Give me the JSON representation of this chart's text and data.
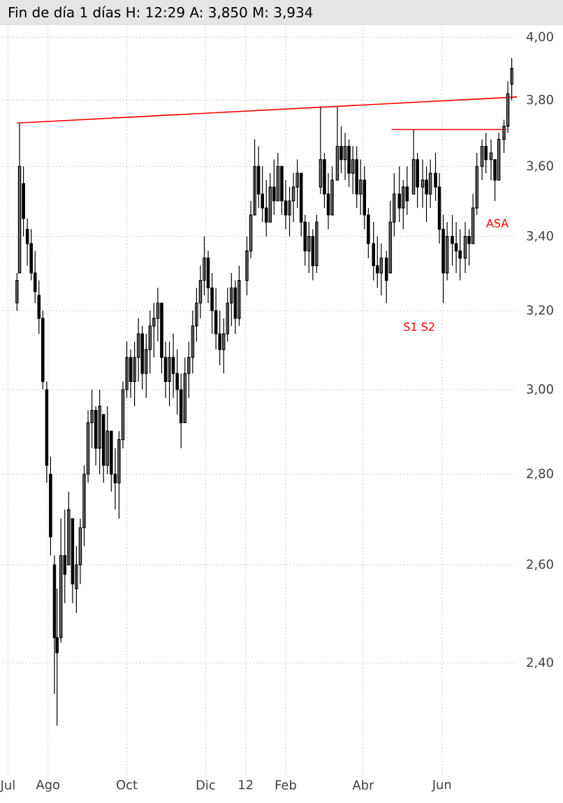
{
  "chart_data": {
    "type": "candlestick",
    "title": "Fin de día 1 días H: 12:29 A: 3,850 M: 3,934",
    "log": true,
    "grid": true,
    "xlim": [
      "2011-06-27",
      "2012-07-29"
    ],
    "ylim": [
      2.19,
      4.04
    ],
    "xticks": [
      {
        "value": "2011-07-01",
        "label": "Jul"
      },
      {
        "value": "2011-08-01",
        "label": "Ago"
      },
      {
        "value": "2011-10-01",
        "label": "Oct"
      },
      {
        "value": "2011-12-01",
        "label": "Dic"
      },
      {
        "value": "2012-01-01",
        "label": "12"
      },
      {
        "value": "2012-02-01",
        "label": "Feb"
      },
      {
        "value": "2012-04-01",
        "label": "Abr"
      },
      {
        "value": "2012-06-01",
        "label": "Jun"
      }
    ],
    "yticks": [
      {
        "value": 2.4,
        "label": "2,40"
      },
      {
        "value": 2.6,
        "label": "2,60"
      },
      {
        "value": 2.8,
        "label": "2,80"
      },
      {
        "value": 3.0,
        "label": "3,00"
      },
      {
        "value": 3.2,
        "label": "3,20"
      },
      {
        "value": 3.4,
        "label": "3,40"
      },
      {
        "value": 3.6,
        "label": "3,60"
      },
      {
        "value": 3.8,
        "label": "3,80"
      },
      {
        "value": 4.0,
        "label": "4,00"
      }
    ],
    "series": [
      {
        "type": "line",
        "color": "#ff0000",
        "x": [
          "2011-07-08",
          "2012-07-29"
        ],
        "values": [
          3.73,
          3.81
        ]
      },
      {
        "type": "line",
        "color": "#ff0000",
        "x": [
          "2012-04-23",
          "2012-07-21"
        ],
        "values": [
          3.71,
          3.71
        ]
      },
      {
        "color": "#000000",
        "x": [
          "2011-07-08",
          "2011-07-10",
          "2011-07-13",
          "2011-07-16",
          "2011-07-19",
          "2011-07-22",
          "2011-07-25",
          "2011-07-28",
          "2011-07-31",
          "2011-08-03",
          "2011-08-06",
          "2011-08-08",
          "2011-08-11",
          "2011-08-14",
          "2011-08-17",
          "2011-08-20",
          "2011-08-23",
          "2011-08-26",
          "2011-08-29",
          "2011-09-01",
          "2011-09-04",
          "2011-09-07",
          "2011-09-10",
          "2011-09-13",
          "2011-09-16",
          "2011-09-19",
          "2011-09-22",
          "2011-09-25",
          "2011-09-28",
          "2011-10-01",
          "2011-10-04",
          "2011-10-07",
          "2011-10-10",
          "2011-10-13",
          "2011-10-16",
          "2011-10-19",
          "2011-10-22",
          "2011-10-25",
          "2011-10-28",
          "2011-10-31",
          "2011-11-03",
          "2011-11-06",
          "2011-11-09",
          "2011-11-12",
          "2011-11-15",
          "2011-11-18",
          "2011-11-21",
          "2011-11-24",
          "2011-11-27",
          "2011-11-30",
          "2011-12-03",
          "2011-12-06",
          "2011-12-09",
          "2011-12-12",
          "2011-12-15",
          "2011-12-18",
          "2011-12-21",
          "2011-12-24",
          "2011-12-27",
          "2012-01-02",
          "2012-01-05",
          "2012-01-08",
          "2012-01-11",
          "2012-01-14",
          "2012-01-17",
          "2012-01-20",
          "2012-01-23",
          "2012-01-26",
          "2012-01-29",
          "2012-02-01",
          "2012-02-04",
          "2012-02-07",
          "2012-02-10",
          "2012-02-13",
          "2012-02-16",
          "2012-02-19",
          "2012-02-22",
          "2012-02-25",
          "2012-02-28",
          "2012-03-02",
          "2012-03-05",
          "2012-03-08",
          "2012-03-12",
          "2012-03-15",
          "2012-03-18",
          "2012-03-21",
          "2012-03-24",
          "2012-03-27",
          "2012-03-30",
          "2012-04-02",
          "2012-04-05",
          "2012-04-09",
          "2012-04-12",
          "2012-04-15",
          "2012-04-19",
          "2012-04-22",
          "2012-04-25",
          "2012-04-29",
          "2012-05-02",
          "2012-05-05",
          "2012-05-10",
          "2012-05-13",
          "2012-05-17",
          "2012-05-20",
          "2012-05-23",
          "2012-05-27",
          "2012-05-30",
          "2012-06-02",
          "2012-06-05",
          "2012-06-09",
          "2012-06-12",
          "2012-06-15",
          "2012-06-19",
          "2012-06-22",
          "2012-06-25",
          "2012-06-28",
          "2012-07-02",
          "2012-07-05",
          "2012-07-09",
          "2012-07-12",
          "2012-07-15",
          "2012-07-19",
          "2012-07-22",
          "2012-07-25"
        ],
        "ohlc": [
          [
            3.22,
            3.3,
            3.2,
            3.28
          ],
          [
            3.3,
            3.73,
            3.3,
            3.6
          ],
          [
            3.55,
            3.6,
            3.4,
            3.45
          ],
          [
            3.42,
            3.45,
            3.32,
            3.38
          ],
          [
            3.38,
            3.42,
            3.28,
            3.3
          ],
          [
            3.3,
            3.36,
            3.22,
            3.25
          ],
          [
            3.24,
            3.28,
            3.14,
            3.18
          ],
          [
            3.18,
            3.2,
            3.0,
            3.02
          ],
          [
            3.0,
            3.02,
            2.78,
            2.82
          ],
          [
            2.8,
            2.84,
            2.62,
            2.66
          ],
          [
            2.6,
            2.62,
            2.34,
            2.45
          ],
          [
            2.45,
            2.55,
            2.28,
            2.42
          ],
          [
            2.45,
            2.7,
            2.44,
            2.62
          ],
          [
            2.62,
            2.72,
            2.52,
            2.58
          ],
          [
            2.6,
            2.76,
            2.6,
            2.72
          ],
          [
            2.7,
            2.7,
            2.52,
            2.56
          ],
          [
            2.55,
            2.64,
            2.5,
            2.6
          ],
          [
            2.6,
            2.7,
            2.56,
            2.68
          ],
          [
            2.68,
            2.82,
            2.64,
            2.8
          ],
          [
            2.8,
            2.95,
            2.78,
            2.92
          ],
          [
            2.92,
            3.0,
            2.86,
            2.95
          ],
          [
            2.95,
            2.96,
            2.82,
            2.86
          ],
          [
            2.86,
            3.0,
            2.8,
            2.96
          ],
          [
            2.94,
            2.94,
            2.78,
            2.82
          ],
          [
            2.82,
            2.96,
            2.8,
            2.9
          ],
          [
            2.9,
            2.9,
            2.76,
            2.8
          ],
          [
            2.8,
            2.86,
            2.72,
            2.78
          ],
          [
            2.78,
            2.9,
            2.7,
            2.88
          ],
          [
            2.88,
            3.02,
            2.86,
            3.0
          ],
          [
            3.0,
            3.12,
            2.98,
            3.08
          ],
          [
            3.08,
            3.1,
            2.98,
            3.02
          ],
          [
            3.02,
            3.12,
            2.96,
            3.08
          ],
          [
            3.08,
            3.18,
            3.02,
            3.14
          ],
          [
            3.14,
            3.16,
            3.0,
            3.04
          ],
          [
            3.04,
            3.14,
            2.98,
            3.1
          ],
          [
            3.1,
            3.2,
            3.04,
            3.16
          ],
          [
            3.16,
            3.22,
            3.08,
            3.18
          ],
          [
            3.18,
            3.26,
            3.12,
            3.22
          ],
          [
            3.22,
            3.22,
            3.04,
            3.08
          ],
          [
            3.08,
            3.12,
            2.98,
            3.02
          ],
          [
            3.02,
            3.12,
            2.96,
            3.08
          ],
          [
            3.08,
            3.14,
            2.98,
            3.04
          ],
          [
            3.04,
            3.1,
            2.94,
            3.0
          ],
          [
            3.0,
            3.04,
            2.86,
            2.92
          ],
          [
            2.92,
            3.08,
            2.92,
            3.04
          ],
          [
            3.04,
            3.12,
            2.98,
            3.08
          ],
          [
            3.08,
            3.2,
            3.04,
            3.16
          ],
          [
            3.16,
            3.26,
            3.12,
            3.22
          ],
          [
            3.22,
            3.32,
            3.18,
            3.28
          ],
          [
            3.28,
            3.4,
            3.24,
            3.34
          ],
          [
            3.34,
            3.36,
            3.22,
            3.26
          ],
          [
            3.26,
            3.3,
            3.14,
            3.2
          ],
          [
            3.2,
            3.26,
            3.1,
            3.14
          ],
          [
            3.14,
            3.2,
            3.06,
            3.1
          ],
          [
            3.1,
            3.18,
            3.04,
            3.14
          ],
          [
            3.14,
            3.26,
            3.12,
            3.22
          ],
          [
            3.22,
            3.3,
            3.16,
            3.26
          ],
          [
            3.26,
            3.28,
            3.14,
            3.18
          ],
          [
            3.18,
            3.32,
            3.16,
            3.28
          ],
          [
            3.28,
            3.4,
            3.24,
            3.36
          ],
          [
            3.36,
            3.5,
            3.34,
            3.46
          ],
          [
            3.46,
            3.68,
            3.46,
            3.6
          ],
          [
            3.6,
            3.66,
            3.48,
            3.52
          ],
          [
            3.52,
            3.6,
            3.44,
            3.48
          ],
          [
            3.48,
            3.56,
            3.4,
            3.44
          ],
          [
            3.44,
            3.58,
            3.44,
            3.54
          ],
          [
            3.54,
            3.62,
            3.46,
            3.5
          ],
          [
            3.5,
            3.64,
            3.5,
            3.6
          ],
          [
            3.6,
            3.6,
            3.46,
            3.5
          ],
          [
            3.5,
            3.56,
            3.42,
            3.46
          ],
          [
            3.46,
            3.54,
            3.4,
            3.5
          ],
          [
            3.5,
            3.58,
            3.44,
            3.54
          ],
          [
            3.54,
            3.62,
            3.48,
            3.58
          ],
          [
            3.58,
            3.58,
            3.4,
            3.44
          ],
          [
            3.44,
            3.46,
            3.32,
            3.36
          ],
          [
            3.36,
            3.44,
            3.3,
            3.4
          ],
          [
            3.4,
            3.42,
            3.28,
            3.32
          ],
          [
            3.32,
            3.46,
            3.3,
            3.44
          ],
          [
            3.54,
            3.78,
            3.52,
            3.62
          ],
          [
            3.62,
            3.64,
            3.48,
            3.52
          ],
          [
            3.52,
            3.58,
            3.42,
            3.46
          ],
          [
            3.46,
            3.6,
            3.46,
            3.56
          ],
          [
            3.56,
            3.78,
            3.56,
            3.66
          ],
          [
            3.66,
            3.72,
            3.58,
            3.62
          ],
          [
            3.62,
            3.7,
            3.56,
            3.66
          ],
          [
            3.66,
            3.68,
            3.54,
            3.58
          ],
          [
            3.58,
            3.66,
            3.52,
            3.62
          ],
          [
            3.62,
            3.66,
            3.48,
            3.52
          ],
          [
            3.52,
            3.62,
            3.46,
            3.56
          ],
          [
            3.56,
            3.6,
            3.42,
            3.46
          ],
          [
            3.46,
            3.48,
            3.34,
            3.38
          ],
          [
            3.38,
            3.44,
            3.28,
            3.32
          ],
          [
            3.32,
            3.4,
            3.26,
            3.3
          ],
          [
            3.3,
            3.38,
            3.24,
            3.34
          ],
          [
            3.34,
            3.36,
            3.22,
            3.28
          ],
          [
            3.3,
            3.5,
            3.3,
            3.44
          ],
          [
            3.44,
            3.58,
            3.4,
            3.52
          ],
          [
            3.52,
            3.6,
            3.44,
            3.48
          ],
          [
            3.48,
            3.56,
            3.42,
            3.54
          ],
          [
            3.54,
            3.6,
            3.46,
            3.5
          ],
          [
            3.52,
            3.71,
            3.52,
            3.62
          ],
          [
            3.62,
            3.64,
            3.48,
            3.54
          ],
          [
            3.54,
            3.62,
            3.48,
            3.56
          ],
          [
            3.56,
            3.6,
            3.44,
            3.52
          ],
          [
            3.52,
            3.62,
            3.48,
            3.58
          ],
          [
            3.58,
            3.64,
            3.5,
            3.54
          ],
          [
            3.54,
            3.58,
            3.38,
            3.42
          ],
          [
            3.42,
            3.46,
            3.22,
            3.3
          ],
          [
            3.3,
            3.44,
            3.28,
            3.4
          ],
          [
            3.4,
            3.46,
            3.32,
            3.38
          ],
          [
            3.38,
            3.44,
            3.3,
            3.36
          ],
          [
            3.36,
            3.42,
            3.28,
            3.34
          ],
          [
            3.34,
            3.44,
            3.3,
            3.4
          ],
          [
            3.4,
            3.42,
            3.32,
            3.38
          ],
          [
            3.38,
            3.52,
            3.38,
            3.48
          ],
          [
            3.48,
            3.64,
            3.46,
            3.6
          ],
          [
            3.6,
            3.68,
            3.56,
            3.66
          ],
          [
            3.66,
            3.7,
            3.58,
            3.62
          ],
          [
            3.62,
            3.68,
            3.56,
            3.64
          ],
          [
            3.62,
            3.62,
            3.5,
            3.56
          ],
          [
            3.56,
            3.7,
            3.56,
            3.68
          ],
          [
            3.68,
            3.74,
            3.64,
            3.72
          ],
          [
            3.72,
            3.86,
            3.7,
            3.82
          ],
          [
            3.85,
            3.934,
            3.8,
            3.9
          ]
        ]
      }
    ],
    "annotations": [
      "S1 S2",
      "ASA"
    ]
  }
}
